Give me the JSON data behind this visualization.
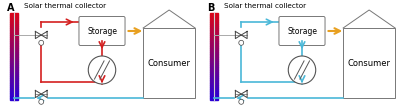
{
  "panel_A_label": "A",
  "panel_B_label": "B",
  "solar_label": "Solar thermal collector",
  "storage_label": "Storage",
  "consumer_label": "Consumer",
  "red_color": "#d42020",
  "cyan_color": "#4ab8d8",
  "orange_color": "#e8a020",
  "line_width": 1.2,
  "bg_color": "#ffffff",
  "valve_color": "#444444",
  "pipe_gray": "#aaaaaa",
  "house_edge": "#777777"
}
